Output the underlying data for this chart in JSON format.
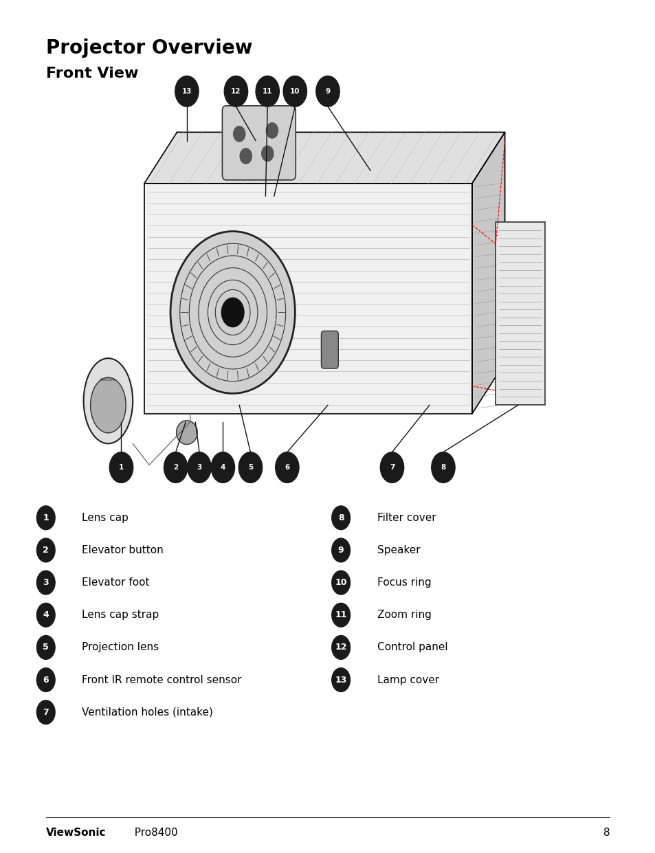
{
  "title": "Projector Overview",
  "subtitle": "Front View",
  "bg_color": "#ffffff",
  "title_fontsize": 20,
  "subtitle_fontsize": 16,
  "footer_brand": "ViewSonic",
  "footer_model": "  Pro8400",
  "footer_page": "8",
  "items_left": [
    {
      "num": "1",
      "label": "Lens cap"
    },
    {
      "num": "2",
      "label": "Elevator button"
    },
    {
      "num": "3",
      "label": "Elevator foot"
    },
    {
      "num": "4",
      "label": "Lens cap strap"
    },
    {
      "num": "5",
      "label": "Projection lens"
    },
    {
      "num": "6",
      "label": "Front IR remote control sensor"
    },
    {
      "num": "7",
      "label": "Ventilation holes (intake)"
    }
  ],
  "items_right": [
    {
      "num": "8",
      "label": "Filter cover"
    },
    {
      "num": "9",
      "label": "Speaker"
    },
    {
      "num": "10",
      "label": "Focus ring"
    },
    {
      "num": "11",
      "label": "Zoom ring"
    },
    {
      "num": "12",
      "label": "Control panel"
    },
    {
      "num": "13",
      "label": "Lamp cover"
    }
  ],
  "bullet_color": "#1a1a1a",
  "label_fontsize": 11,
  "num_fontsize": 9
}
